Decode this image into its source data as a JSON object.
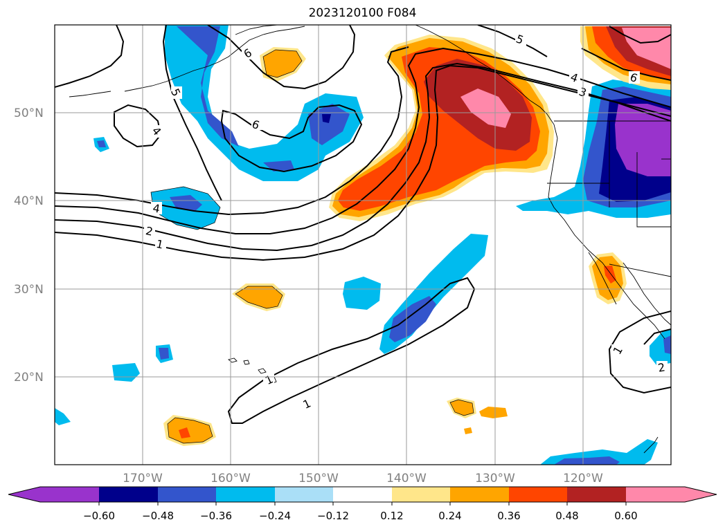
{
  "title": "2023120100 F084",
  "longitude_labels": [
    "170°W",
    "160°W",
    "150°W",
    "140°W",
    "130°W",
    "120°W"
  ],
  "latitude_labels": [
    "50°N",
    "40°N",
    "30°N",
    "20°N"
  ],
  "colorbar": {
    "tick_labels": [
      "−0.60",
      "−0.48",
      "−0.36",
      "−0.24",
      "−0.12",
      "0.12",
      "0.24",
      "0.36",
      "0.48",
      "0.60"
    ],
    "colors": [
      "#9933cc",
      "#00008b",
      "#3355cc",
      "#00bbee",
      "#aadff7",
      "#ffffff",
      "#ffe68a",
      "#ffa500",
      "#ff4500",
      "#b22222",
      "#ff88aa"
    ]
  },
  "contour_labels": [
    "4",
    "2",
    "1",
    "5",
    "4",
    "6",
    "6",
    "5",
    "4",
    "3",
    "6",
    "1",
    "1",
    "1",
    "2"
  ]
}
